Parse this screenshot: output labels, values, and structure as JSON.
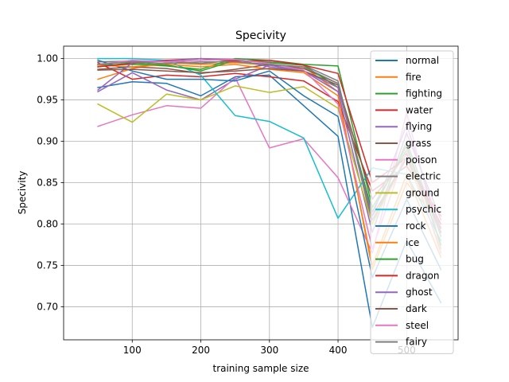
{
  "chart_data": {
    "type": "line",
    "title": "Specivity",
    "xlabel": "training sample size",
    "ylabel": "Specivity",
    "x": [
      50,
      100,
      150,
      200,
      250,
      300,
      350,
      400,
      450,
      500,
      550
    ],
    "xlim": [
      0,
      575
    ],
    "ylim": [
      0.66,
      1.015
    ],
    "xticks": [
      100,
      200,
      300,
      400,
      500
    ],
    "yticks": [
      0.7,
      0.75,
      0.8,
      0.85,
      0.9,
      0.95,
      1.0
    ],
    "grid": true,
    "legend_position": "top-right",
    "series": [
      {
        "name": "normal",
        "color": "#1f77b4",
        "values": [
          0.965,
          0.972,
          0.97,
          0.955,
          0.978,
          0.98,
          0.943,
          0.906,
          0.675,
          0.78,
          0.705
        ]
      },
      {
        "name": "fire",
        "color": "#ff7f0e",
        "values": [
          0.975,
          0.988,
          0.995,
          0.993,
          0.995,
          0.992,
          0.99,
          0.96,
          0.745,
          0.85,
          0.8
        ]
      },
      {
        "name": "fighting",
        "color": "#2ca02c",
        "values": [
          0.992,
          0.993,
          0.991,
          0.987,
          1.0,
          0.998,
          0.993,
          0.991,
          0.82,
          0.89,
          0.79
        ]
      },
      {
        "name": "water",
        "color": "#d62728",
        "values": [
          0.995,
          0.975,
          0.98,
          0.978,
          0.982,
          0.978,
          0.973,
          0.948,
          0.84,
          0.87,
          0.81
        ]
      },
      {
        "name": "flying",
        "color": "#9467bd",
        "values": [
          0.96,
          0.983,
          0.962,
          0.95,
          0.975,
          0.992,
          0.985,
          0.96,
          0.79,
          0.91,
          0.805
        ]
      },
      {
        "name": "grass",
        "color": "#8c564b",
        "values": [
          0.987,
          0.99,
          0.988,
          0.982,
          0.987,
          0.993,
          0.988,
          0.97,
          0.81,
          0.88,
          0.795
        ]
      },
      {
        "name": "poison",
        "color": "#e377c2",
        "values": [
          0.918,
          0.932,
          0.943,
          0.94,
          0.977,
          0.892,
          0.903,
          0.856,
          0.765,
          0.935,
          0.77
        ]
      },
      {
        "name": "electric",
        "color": "#7f7f7f",
        "values": [
          0.996,
          0.997,
          0.997,
          0.994,
          0.998,
          0.996,
          0.992,
          0.973,
          0.8,
          0.9,
          0.785
        ]
      },
      {
        "name": "ground",
        "color": "#bcbd22",
        "values": [
          0.945,
          0.923,
          0.957,
          0.95,
          0.967,
          0.959,
          0.966,
          0.94,
          0.8,
          0.88,
          0.77
        ]
      },
      {
        "name": "psychic",
        "color": "#17becf",
        "values": [
          1.0,
          1.0,
          0.998,
          0.98,
          0.931,
          0.924,
          0.904,
          0.807,
          0.868,
          0.86,
          0.78
        ]
      },
      {
        "name": "rock",
        "color": "#1f77b4",
        "values": [
          0.998,
          0.985,
          0.975,
          0.975,
          0.973,
          0.985,
          0.955,
          0.93,
          0.735,
          0.83,
          0.745
        ]
      },
      {
        "name": "ice",
        "color": "#ff7f0e",
        "values": [
          0.992,
          0.99,
          0.993,
          0.99,
          0.993,
          0.987,
          0.983,
          0.955,
          0.75,
          0.86,
          0.76
        ]
      },
      {
        "name": "bug",
        "color": "#2ca02c",
        "values": [
          0.99,
          0.995,
          0.992,
          0.985,
          0.998,
          0.995,
          0.992,
          0.965,
          0.815,
          0.895,
          0.775
        ]
      },
      {
        "name": "dragon",
        "color": "#d62728",
        "values": [
          0.99,
          0.994,
          0.998,
          1.0,
          0.997,
          0.998,
          0.992,
          0.982,
          0.85,
          0.88,
          0.8
        ]
      },
      {
        "name": "ghost",
        "color": "#9467bd",
        "values": [
          0.962,
          0.995,
          0.997,
          1.0,
          0.999,
          0.99,
          0.985,
          0.965,
          0.81,
          0.92,
          0.79
        ]
      },
      {
        "name": "dark",
        "color": "#8c564b",
        "values": [
          0.986,
          0.987,
          0.985,
          0.983,
          0.985,
          0.988,
          0.985,
          0.968,
          0.83,
          0.885,
          0.79
        ]
      },
      {
        "name": "steel",
        "color": "#e377c2",
        "values": [
          0.993,
          0.998,
          0.996,
          0.998,
          0.999,
          0.994,
          0.986,
          0.945,
          0.77,
          0.89,
          0.765
        ]
      },
      {
        "name": "fairy",
        "color": "#7f7f7f",
        "values": [
          0.993,
          0.996,
          0.994,
          0.996,
          0.996,
          0.993,
          0.99,
          0.97,
          0.805,
          0.88,
          0.79
        ]
      }
    ]
  }
}
